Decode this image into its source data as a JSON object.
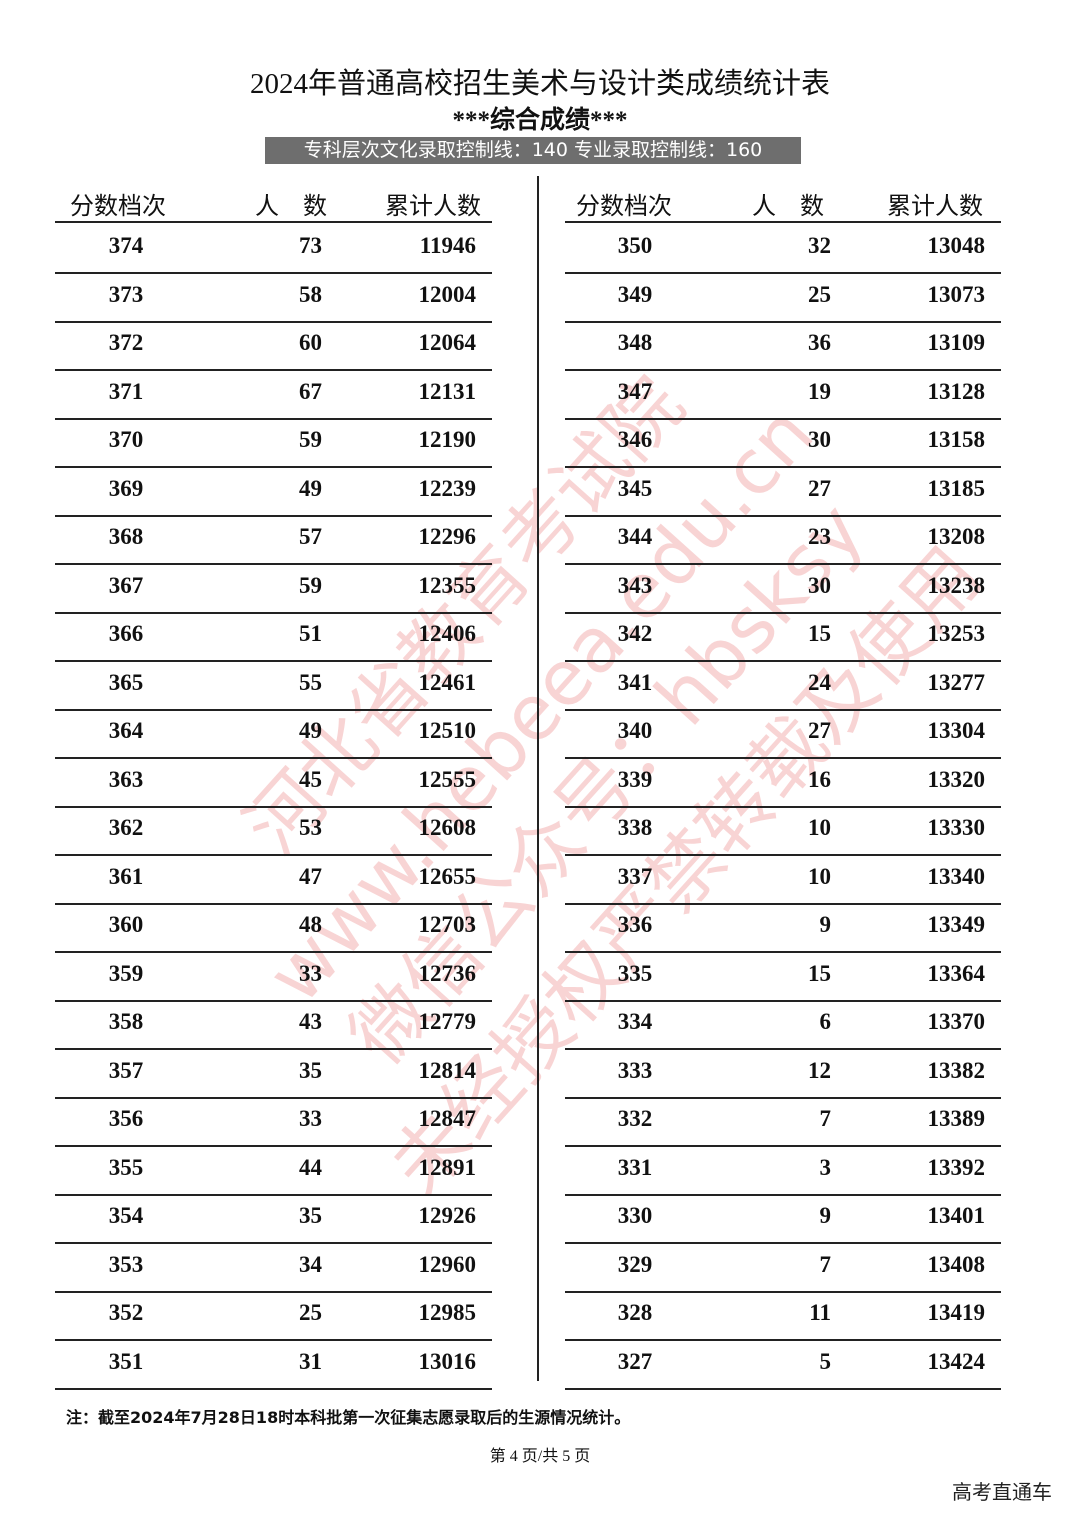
{
  "header": {
    "title": "2024年普通高校招生美术与设计类成绩统计表",
    "subtitle": "***综合成绩***",
    "banner": "专科层次文化录取控制线：140 专业录取控制线：160"
  },
  "tables": [
    {
      "headers": [
        "分数档次",
        "人　数",
        "累计人数"
      ],
      "rows": [
        [
          374,
          73,
          11946
        ],
        [
          373,
          58,
          12004
        ],
        [
          372,
          60,
          12064
        ],
        [
          371,
          67,
          12131
        ],
        [
          370,
          59,
          12190
        ],
        [
          369,
          49,
          12239
        ],
        [
          368,
          57,
          12296
        ],
        [
          367,
          59,
          12355
        ],
        [
          366,
          51,
          12406
        ],
        [
          365,
          55,
          12461
        ],
        [
          364,
          49,
          12510
        ],
        [
          363,
          45,
          12555
        ],
        [
          362,
          53,
          12608
        ],
        [
          361,
          47,
          12655
        ],
        [
          360,
          48,
          12703
        ],
        [
          359,
          33,
          12736
        ],
        [
          358,
          43,
          12779
        ],
        [
          357,
          35,
          12814
        ],
        [
          356,
          33,
          12847
        ],
        [
          355,
          44,
          12891
        ],
        [
          354,
          35,
          12926
        ],
        [
          353,
          34,
          12960
        ],
        [
          352,
          25,
          12985
        ],
        [
          351,
          31,
          13016
        ]
      ]
    },
    {
      "headers": [
        "分数档次",
        "人　数",
        "累计人数"
      ],
      "rows": [
        [
          350,
          32,
          13048
        ],
        [
          349,
          25,
          13073
        ],
        [
          348,
          36,
          13109
        ],
        [
          347,
          19,
          13128
        ],
        [
          346,
          30,
          13158
        ],
        [
          345,
          27,
          13185
        ],
        [
          344,
          23,
          13208
        ],
        [
          343,
          30,
          13238
        ],
        [
          342,
          15,
          13253
        ],
        [
          341,
          24,
          13277
        ],
        [
          340,
          27,
          13304
        ],
        [
          339,
          16,
          13320
        ],
        [
          338,
          10,
          13330
        ],
        [
          337,
          10,
          13340
        ],
        [
          336,
          9,
          13349
        ],
        [
          335,
          15,
          13364
        ],
        [
          334,
          6,
          13370
        ],
        [
          333,
          12,
          13382
        ],
        [
          332,
          7,
          13389
        ],
        [
          331,
          3,
          13392
        ],
        [
          330,
          9,
          13401
        ],
        [
          329,
          7,
          13408
        ],
        [
          328,
          11,
          13419
        ],
        [
          327,
          5,
          13424
        ]
      ]
    }
  ],
  "note": "注：截至2024年7月28日18时本科批第一次征集志愿录取后的生源情况统计。",
  "page": "第 4 页/共 5 页",
  "watermark": [
    "河北省教育考试院",
    "www.hebeea.edu.cn",
    "微信公众号：hbsksy",
    "未经授权严禁转载及使用"
  ],
  "corner": "高考直通车"
}
